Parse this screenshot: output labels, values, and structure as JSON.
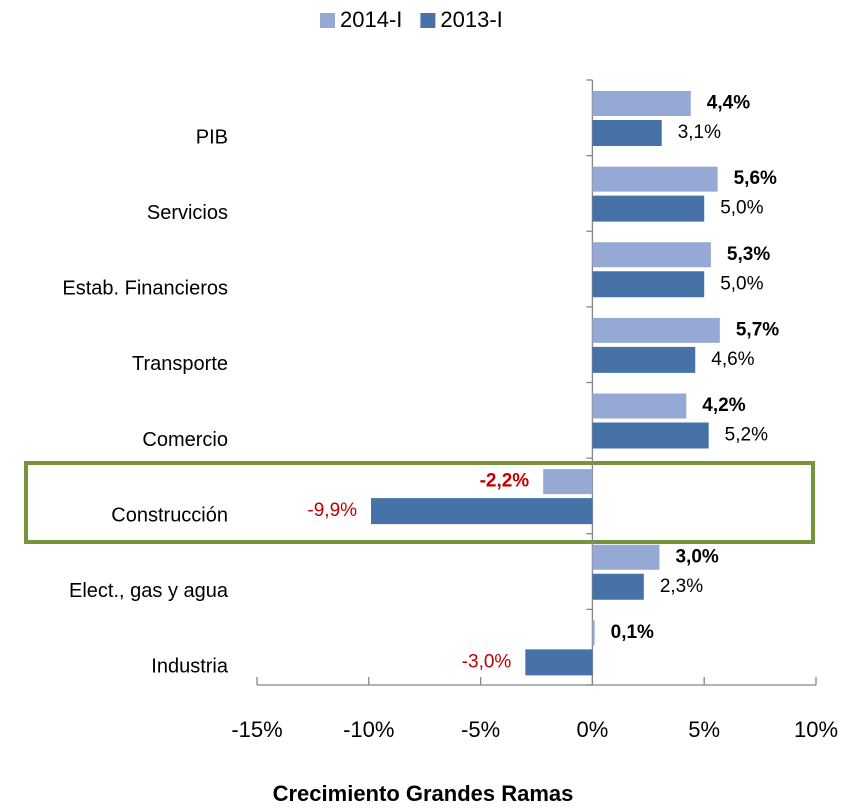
{
  "chart_data": {
    "type": "bar",
    "orientation": "horizontal",
    "title": "Crecimiento Grandes Ramas",
    "categories": [
      "PIB",
      "Servicios",
      "Estab. Financieros",
      "Transporte",
      "Comercio",
      "Construcción",
      "Elect., gas y agua",
      "Industria"
    ],
    "series": [
      {
        "name": "2014-I",
        "color": "#95a9d4",
        "values": [
          4.4,
          5.6,
          5.3,
          5.7,
          4.2,
          -2.2,
          3.0,
          0.1
        ],
        "value_labels": [
          "4,4%",
          "5,6%",
          "5,3%",
          "5,7%",
          "4,2%",
          "-2,2%",
          "3,0%",
          "0,1%"
        ]
      },
      {
        "name": "2013-I",
        "color": "#4672a8",
        "values": [
          3.1,
          5.0,
          5.0,
          4.6,
          5.2,
          -9.9,
          2.3,
          -3.0
        ],
        "value_labels": [
          "3,1%",
          "5,0%",
          "5,0%",
          "4,6%",
          "5,2%",
          "-9,9%",
          "2,3%",
          "-3,0%"
        ]
      }
    ],
    "xlim": [
      -15,
      10
    ],
    "xticks": [
      {
        "value": -15,
        "label": "-15%"
      },
      {
        "value": -10,
        "label": "-10%"
      },
      {
        "value": -5,
        "label": "-5%"
      },
      {
        "value": 0,
        "label": "0%"
      },
      {
        "value": 5,
        "label": "5%"
      },
      {
        "value": 10,
        "label": "10%"
      }
    ],
    "legend": "top",
    "grid": false
  }
}
